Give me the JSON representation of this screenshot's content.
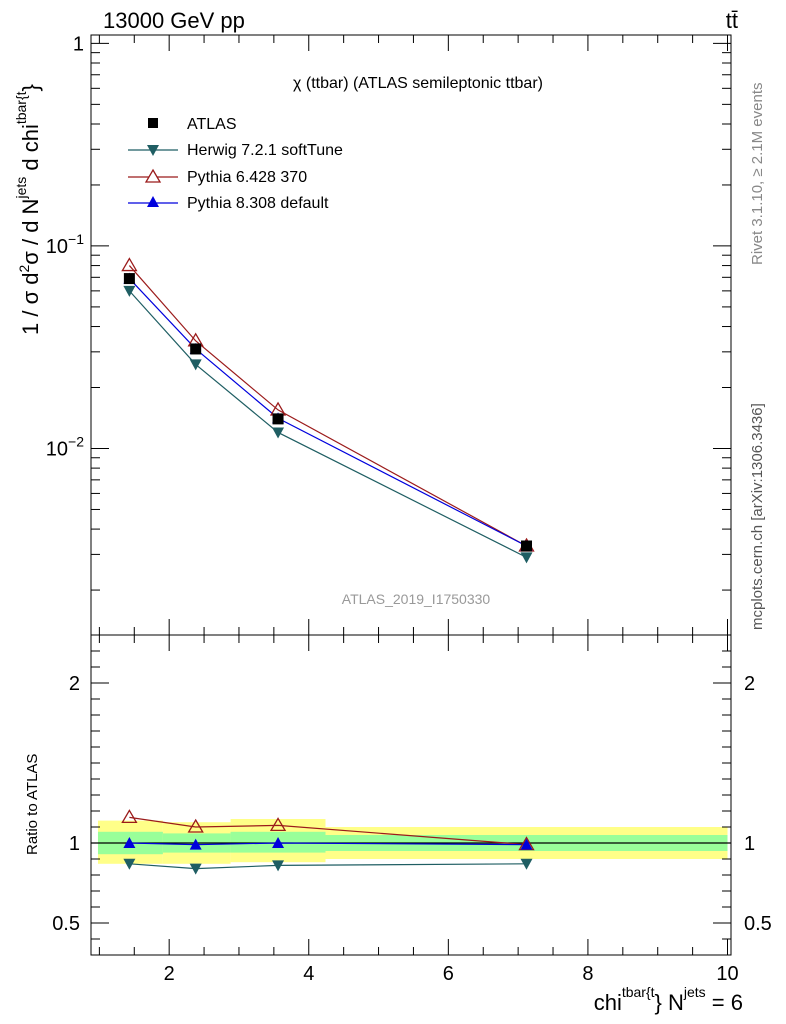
{
  "header": {
    "left_title": "13000 GeV pp",
    "right_title": "tt̄"
  },
  "side_labels": {
    "rivet": "Rivet 3.1.10, ≥ 2.1M events",
    "mcplots": "mcplots.cern.ch [arXiv:1306.3436]"
  },
  "chart_data": [
    {
      "type": "line",
      "panel": "main",
      "title": "χ (ttbar) (ATLAS semileptonic ttbar)",
      "watermark": "ATLAS_2019_I1750330",
      "ylabel": {
        "parts": [
          "1 / σ d",
          "2",
          "σ / d N",
          "jets",
          " d chi",
          "tbar{t",
          "}"
        ]
      },
      "yscale": "log",
      "ylim": [
        0.0012,
        1.1
      ],
      "xlim": [
        0.88,
        10.05
      ],
      "x_ticks": [
        "2",
        "4",
        "6",
        "8",
        "10"
      ],
      "y_ticks": [
        {
          "base": "10",
          "exp": "−2",
          "value": 0.01
        },
        {
          "base": "10",
          "exp": "−1",
          "value": 0.1
        },
        {
          "base": "1",
          "exp": "",
          "value": 1
        }
      ],
      "legend_position": "top-left",
      "x": [
        1.43,
        2.38,
        3.56,
        7.12
      ],
      "series": [
        {
          "name": "ATLAS",
          "marker": "square",
          "color": "#000000",
          "values": [
            0.069,
            0.031,
            0.014,
            0.0033
          ]
        },
        {
          "name": "Herwig 7.2.1 softTune",
          "marker": "triangle-down",
          "color": "#1f5e63",
          "values": [
            0.06,
            0.026,
            0.012,
            0.0029
          ]
        },
        {
          "name": "Pythia 6.428 370",
          "marker": "triangle-up-open",
          "color": "#9b1b1b",
          "values": [
            0.08,
            0.034,
            0.0155,
            0.0033
          ]
        },
        {
          "name": "Pythia 8.308 default",
          "marker": "triangle-up",
          "color": "#0000dd",
          "values": [
            0.069,
            0.031,
            0.0141,
            0.0033
          ]
        }
      ]
    },
    {
      "type": "line",
      "panel": "ratio",
      "ylabel": "Ratio to ATLAS",
      "ylim": [
        0.3,
        2.3
      ],
      "y_ticks": [
        "0.5",
        "1",
        "2"
      ],
      "xlim": [
        0.88,
        10.05
      ],
      "xlabel": {
        "parts": [
          "chi",
          "tbar{t",
          "} N",
          "jets",
          " = 6"
        ]
      },
      "bins": [
        [
          0.98,
          1.91
        ],
        [
          1.91,
          2.88
        ],
        [
          2.88,
          4.24
        ],
        [
          4.24,
          10.0
        ]
      ],
      "bands": {
        "yellow": {
          "color": "#ffff88",
          "low": [
            0.87,
            0.87,
            0.88,
            0.9
          ],
          "high": [
            1.14,
            1.13,
            1.15,
            1.1
          ]
        },
        "green": {
          "color": "#99ff99",
          "low": [
            0.93,
            0.94,
            0.94,
            0.95
          ],
          "high": [
            1.07,
            1.06,
            1.07,
            1.05
          ]
        }
      },
      "x": [
        1.43,
        2.38,
        3.56,
        7.12
      ],
      "series": [
        {
          "name": "Herwig 7.2.1 softTune",
          "marker": "triangle-down",
          "color": "#1f5e63",
          "values": [
            0.87,
            0.84,
            0.86,
            0.87
          ]
        },
        {
          "name": "Pythia 6.428 370",
          "marker": "triangle-up-open",
          "color": "#9b1b1b",
          "values": [
            1.16,
            1.1,
            1.11,
            0.99
          ]
        },
        {
          "name": "Pythia 8.308 default",
          "marker": "triangle-up",
          "color": "#0000dd",
          "values": [
            1.0,
            0.99,
            1.0,
            0.99
          ]
        }
      ]
    }
  ]
}
